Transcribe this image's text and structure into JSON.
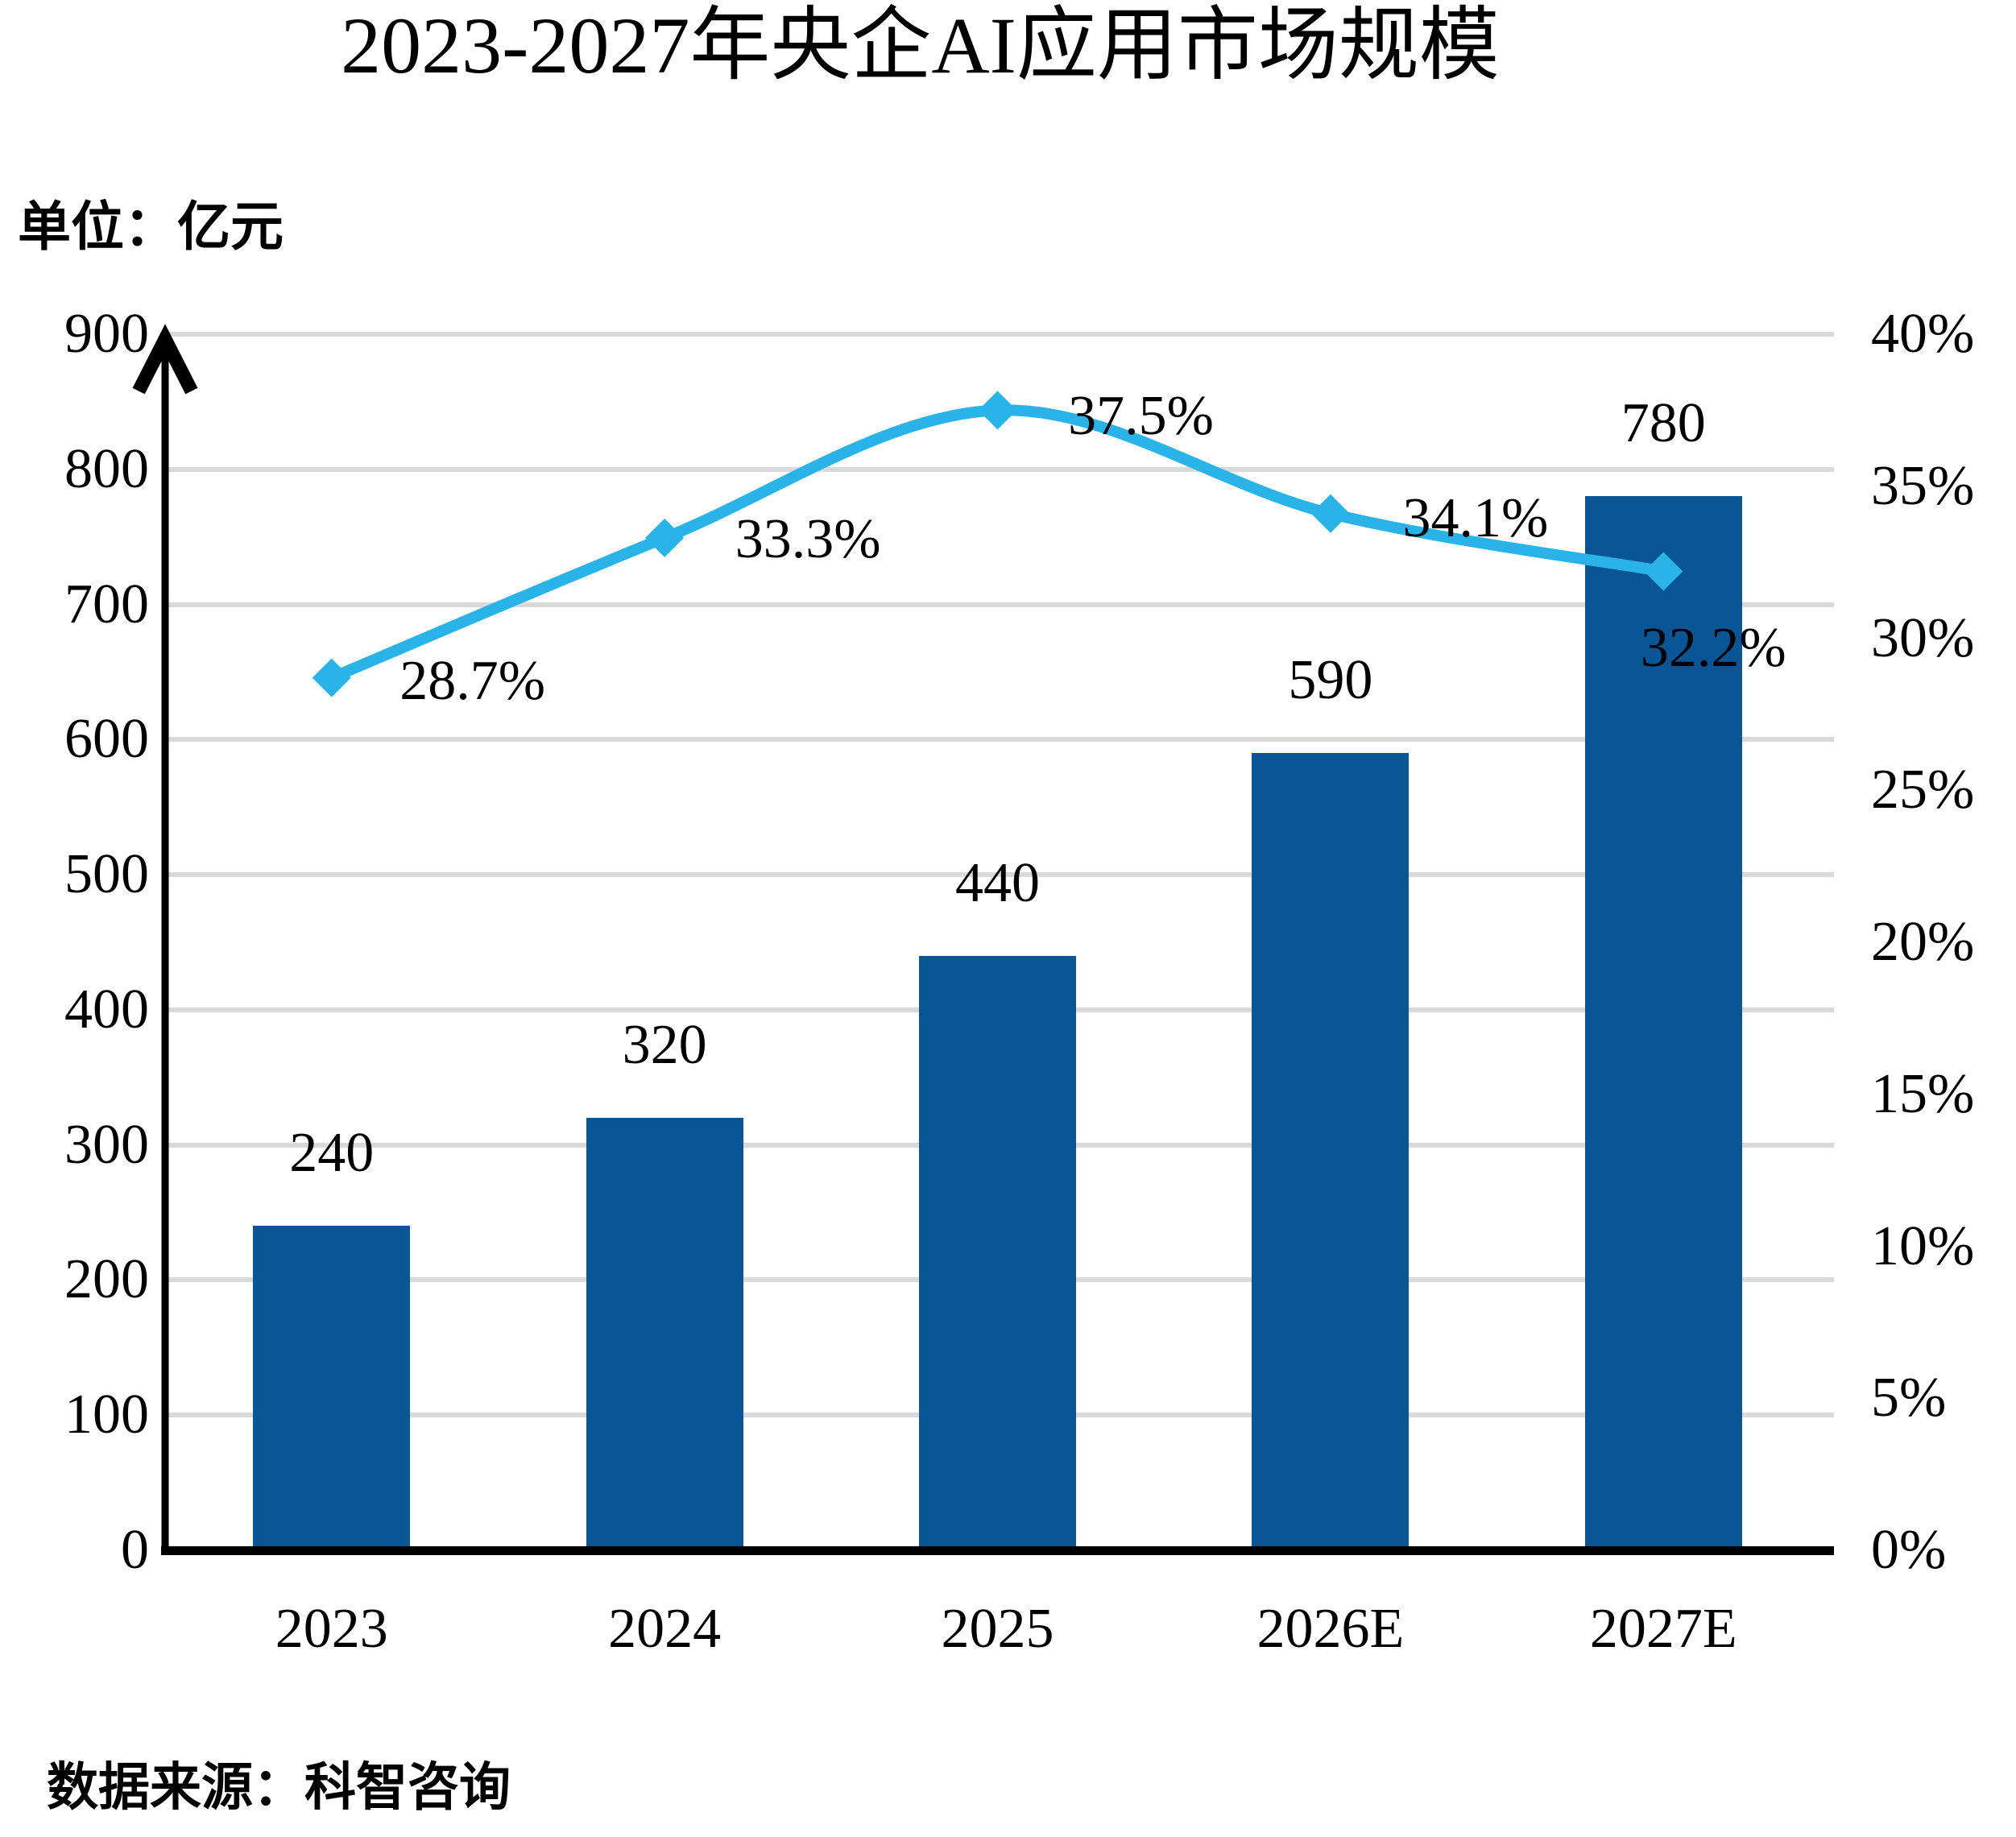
{
  "title": "2023-2027年央企AI应用市场规模",
  "unit_label": "单位：亿元",
  "source_label": "数据来源：科智咨询",
  "colors": {
    "bar": "#0A5596",
    "line": "#29B3E8",
    "gridline": "#D9D9D9",
    "axis": "#000000",
    "text": "#000000"
  },
  "chart_data": {
    "type": "bar",
    "subtype": "combo-bar-line-dual-axis",
    "title": "2023-2027年央企AI应用市场规模",
    "categories": [
      "2023",
      "2024",
      "2025",
      "2026E",
      "2027E"
    ],
    "series": [
      {
        "type": "bar",
        "axis": "left",
        "values": [
          240,
          320,
          440,
          590,
          780
        ],
        "labels": [
          "240",
          "320",
          "440",
          "590",
          "780"
        ]
      },
      {
        "type": "line",
        "axis": "right",
        "values": [
          28.7,
          33.3,
          37.5,
          34.1,
          32.2
        ],
        "labels": [
          "28.7%",
          "33.3%",
          "37.5%",
          "34.1%",
          "32.2%"
        ]
      }
    ],
    "left_axis": {
      "min": 0,
      "max": 900,
      "step": 100,
      "ticks": [
        "0",
        "100",
        "200",
        "300",
        "400",
        "500",
        "600",
        "700",
        "800",
        "900"
      ]
    },
    "right_axis": {
      "min": 0,
      "max": 40,
      "step": 5,
      "ticks": [
        "0%",
        "5%",
        "10%",
        "15%",
        "20%",
        "25%",
        "30%",
        "35%",
        "40%"
      ]
    },
    "grid": true,
    "legend": "none",
    "unit": "亿元",
    "source": "科智咨询"
  }
}
